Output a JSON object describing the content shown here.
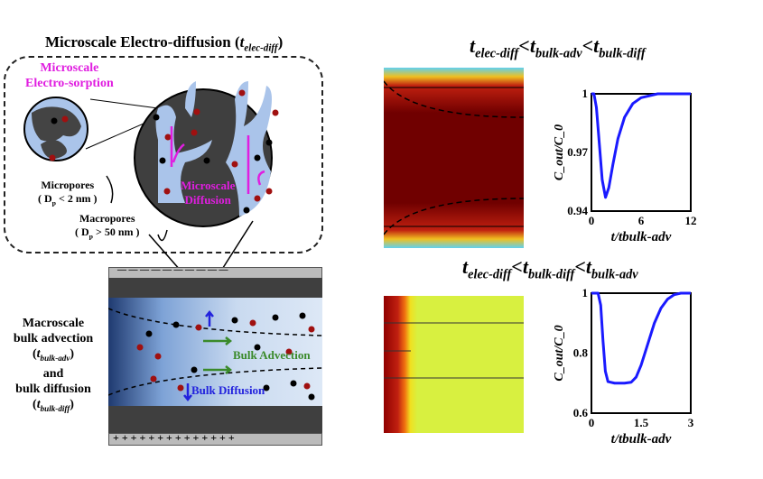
{
  "top_left": {
    "title": "Microscale Electro-diffusion (",
    "title_sym": "t",
    "title_sub": "elec-diff",
    "title_end": ")",
    "electrosorption": [
      "Microscale",
      "Electro-sorption"
    ],
    "micropores": [
      "Micropores",
      "( D",
      "p",
      " < 2 nm )"
    ],
    "macropores": [
      "Macropores",
      "( D",
      "p",
      " > 50 nm )"
    ],
    "diffusion": [
      "Microscale",
      "Diffusion"
    ]
  },
  "bottom_left": {
    "macro": [
      "Macroscale",
      "bulk advection"
    ],
    "adv_sym": "t",
    "adv_sub": "bulk-adv",
    "and": "and",
    "bulk_diff": "bulk diffusion",
    "diff_sym": "t",
    "diff_sub": "bulk-diff",
    "bulk_advection": "Bulk Advection",
    "bulk_diffusion": "Bulk Diffusion",
    "minus": "—  —  —  —  —  —  —  —  —  —",
    "plus": "+  +  +  +  +  +  +  +  +  +  +  +  +  +"
  },
  "case1": {
    "t": "t",
    "s1": "elec-diff",
    "lt": "<",
    "s2": "bulk-adv",
    "s3": "bulk-diff"
  },
  "case2": {
    "t": "t",
    "s1": "elec-diff",
    "lt": "<",
    "s2": "bulk-diff",
    "s3": "bulk-adv"
  },
  "colors": {
    "curve": "#1a1aff",
    "magenta": "#e01ee0",
    "green": "#3a8a2a",
    "blue_arrow": "#2222dd",
    "red_ion": "#a01010"
  },
  "chart_data": [
    {
      "type": "line",
      "ylabel": "C_out/C_0",
      "xlabel": "t/t_bulk-adv",
      "xlim": [
        0,
        12
      ],
      "ylim": [
        0.94,
        1
      ],
      "xticks": [
        "0",
        "6",
        "12"
      ],
      "yticks": [
        "0.94",
        "0.97",
        "1"
      ],
      "x": [
        0,
        0.3,
        0.6,
        1,
        1.3,
        1.7,
        2.1,
        2.6,
        3.2,
        4,
        5,
        6,
        7,
        8,
        9,
        10,
        12
      ],
      "y": [
        1,
        1,
        0.993,
        0.972,
        0.956,
        0.947,
        0.952,
        0.964,
        0.977,
        0.988,
        0.995,
        0.998,
        0.999,
        1,
        1,
        1,
        1
      ]
    },
    {
      "type": "line",
      "ylabel": "C_out/C_0",
      "xlabel": "t/t_bulk-adv",
      "xlim": [
        0,
        3
      ],
      "ylim": [
        0.6,
        1
      ],
      "xticks": [
        "0",
        "1.5",
        "3"
      ],
      "yticks": [
        "0.6",
        "0.8",
        "1"
      ],
      "x": [
        0,
        0.2,
        0.28,
        0.35,
        0.42,
        0.5,
        0.7,
        1,
        1.2,
        1.35,
        1.5,
        1.7,
        1.9,
        2.1,
        2.3,
        2.5,
        2.7,
        3
      ],
      "y": [
        1,
        1,
        0.96,
        0.84,
        0.74,
        0.705,
        0.7,
        0.7,
        0.703,
        0.72,
        0.76,
        0.83,
        0.9,
        0.95,
        0.98,
        0.995,
        1,
        1
      ]
    }
  ]
}
